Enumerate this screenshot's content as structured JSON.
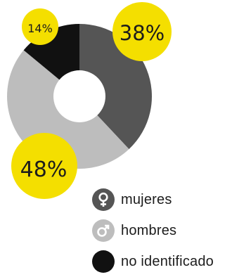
{
  "chart_data": {
    "type": "pie",
    "categories": [
      "mujeres",
      "hombres",
      "no identificado"
    ],
    "values": [
      38,
      48,
      14
    ],
    "labels": [
      "38%",
      "48%",
      "14%"
    ],
    "colors": [
      "#555555",
      "#bdbdbd",
      "#111111"
    ],
    "label_bubble_color": "#f4df00",
    "legend_position": "bottom-right"
  },
  "legend": [
    {
      "label": "mujeres",
      "icon": "female-symbol-icon",
      "color": "#555555"
    },
    {
      "label": "hombres",
      "icon": "male-symbol-icon",
      "color": "#bdbdbd"
    },
    {
      "label": "no identificado",
      "icon": "none",
      "color": "#111111"
    }
  ]
}
